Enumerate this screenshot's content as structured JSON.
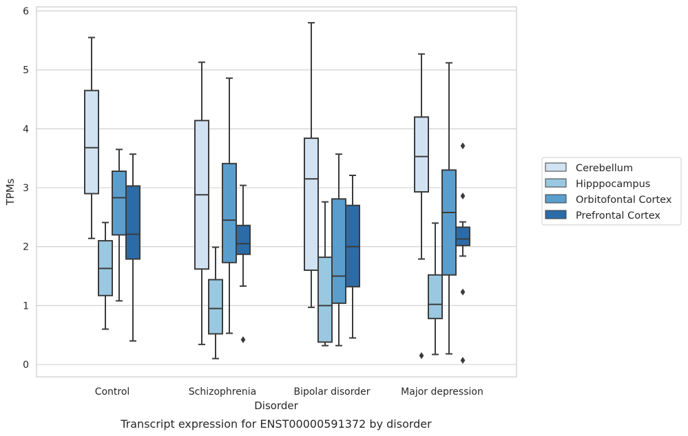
{
  "chart_data": {
    "type": "box",
    "xlabel": "Disorder",
    "ylabel": "TPMs",
    "caption": "Transcript expression for ENST00000591372 by disorder",
    "ylim": [
      -0.2,
      6.1
    ],
    "yticks": [
      0,
      1,
      2,
      3,
      4,
      5,
      6
    ],
    "grid": "horizontal",
    "legend_position": "right",
    "categories": [
      "Control",
      "Schizophrenia",
      "Bipolar disorder",
      "Major depression"
    ],
    "series": [
      {
        "name": "Cerebellum",
        "color": "#d1e2f2",
        "boxes": [
          {
            "whislo": 2.14,
            "q1": 2.9,
            "med": 3.68,
            "q3": 4.65,
            "whishi": 5.55,
            "fliers": []
          },
          {
            "whislo": 0.34,
            "q1": 1.62,
            "med": 2.88,
            "q3": 4.14,
            "whishi": 5.13,
            "fliers": []
          },
          {
            "whislo": 0.97,
            "q1": 1.6,
            "med": 3.15,
            "q3": 3.84,
            "whishi": 5.8,
            "fliers": []
          },
          {
            "whislo": 1.79,
            "q1": 2.93,
            "med": 3.53,
            "q3": 4.2,
            "whishi": 5.27,
            "fliers": [
              0.15
            ]
          }
        ]
      },
      {
        "name": "Hipppocampus",
        "color": "#9ac8e0",
        "boxes": [
          {
            "whislo": 0.6,
            "q1": 1.17,
            "med": 1.63,
            "q3": 2.1,
            "whishi": 2.41,
            "fliers": []
          },
          {
            "whislo": 0.1,
            "q1": 0.52,
            "med": 0.95,
            "q3": 1.44,
            "whishi": 1.99,
            "fliers": []
          },
          {
            "whislo": 0.32,
            "q1": 0.38,
            "med": 1.0,
            "q3": 1.82,
            "whishi": 2.76,
            "fliers": []
          },
          {
            "whislo": 0.17,
            "q1": 0.78,
            "med": 1.02,
            "q3": 1.52,
            "whishi": 2.4,
            "fliers": []
          }
        ]
      },
      {
        "name": "Orbitofontal Cortex",
        "color": "#5a9ecd",
        "boxes": [
          {
            "whislo": 1.08,
            "q1": 2.2,
            "med": 2.83,
            "q3": 3.28,
            "whishi": 3.65,
            "fliers": []
          },
          {
            "whislo": 0.53,
            "q1": 1.73,
            "med": 2.45,
            "q3": 3.41,
            "whishi": 4.86,
            "fliers": []
          },
          {
            "whislo": 0.32,
            "q1": 1.04,
            "med": 1.5,
            "q3": 2.81,
            "whishi": 3.57,
            "fliers": []
          },
          {
            "whislo": 0.18,
            "q1": 1.52,
            "med": 2.58,
            "q3": 3.3,
            "whishi": 5.12,
            "fliers": []
          }
        ]
      },
      {
        "name": "Prefrontal Cortex",
        "color": "#2b6ca8",
        "boxes": [
          {
            "whislo": 0.4,
            "q1": 1.79,
            "med": 2.21,
            "q3": 3.03,
            "whishi": 3.57,
            "fliers": []
          },
          {
            "whislo": 1.33,
            "q1": 1.87,
            "med": 2.05,
            "q3": 2.36,
            "whishi": 3.04,
            "fliers": [
              0.42
            ]
          },
          {
            "whislo": 0.45,
            "q1": 1.32,
            "med": 2.0,
            "q3": 2.7,
            "whishi": 3.21,
            "fliers": []
          },
          {
            "whislo": 1.84,
            "q1": 2.02,
            "med": 2.13,
            "q3": 2.33,
            "whishi": 2.42,
            "fliers": [
              3.71,
              2.86,
              1.23,
              0.07
            ]
          }
        ]
      }
    ]
  }
}
